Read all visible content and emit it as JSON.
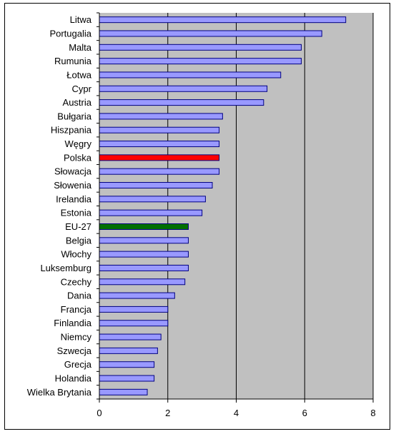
{
  "chart_data": {
    "type": "bar",
    "orientation": "horizontal",
    "title": "",
    "xlabel": "",
    "ylabel": "",
    "categories": [
      "Litwa",
      "Portugalia",
      "Malta",
      "Rumunia",
      "Łotwa",
      "Cypr",
      "Austria",
      "Bułgaria",
      "Hiszpania",
      "Węgry",
      "Polska",
      "Słowacja",
      "Słowenia",
      "Irelandia",
      "Estonia",
      "EU-27",
      "Belgia",
      "Włochy",
      "Luksemburg",
      "Czechy",
      "Dania",
      "Francja",
      "Finlandia",
      "Niemcy",
      "Szwecja",
      "Grecja",
      "Holandia",
      "Wielka Brytania"
    ],
    "values": [
      7.2,
      6.5,
      5.9,
      5.9,
      5.3,
      4.9,
      4.8,
      3.6,
      3.5,
      3.5,
      3.5,
      3.5,
      3.3,
      3.1,
      3.0,
      2.6,
      2.6,
      2.6,
      2.6,
      2.5,
      2.2,
      2.0,
      2.0,
      1.8,
      1.7,
      1.6,
      1.6,
      1.4
    ],
    "xlim": [
      0,
      8
    ],
    "xticks": [
      "0",
      "2",
      "4",
      "6",
      "8"
    ],
    "grid": "vertical",
    "legend": "none",
    "colors": {
      "plot_background": "#c0c0c0",
      "bar_default": "#9999ff",
      "bar_border": "#000080",
      "highlight_polska": "#ff0000",
      "highlight_eu27": "#007000",
      "gridline": "#000000"
    },
    "highlights": {
      "Polska": "#ff0000",
      "EU-27": "#007000"
    }
  }
}
